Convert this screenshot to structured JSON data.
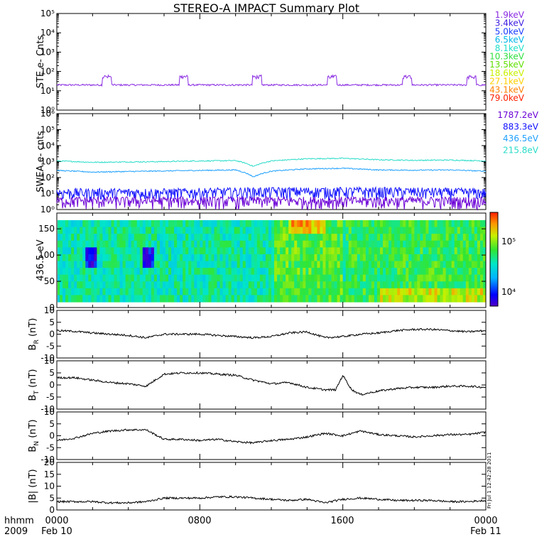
{
  "title": "STEREO-A IMPACT Summary Plot",
  "colors": {
    "axis": "#000000",
    "trace": "#000000",
    "ste": "#8a2be2",
    "swea_dark": [
      "#6b00d6",
      "#1010ff"
    ],
    "swea_light": [
      "#1ea0ff",
      "#28dcc8"
    ]
  },
  "legend_ste": [
    {
      "label": "1.9keV",
      "color": "#8a2be2"
    },
    {
      "label": "3.4keV",
      "color": "#3a1ae0"
    },
    {
      "label": "5.0keV",
      "color": "#1a3cff"
    },
    {
      "label": "6.5keV",
      "color": "#00b7e8"
    },
    {
      "label": "8.1keV",
      "color": "#20e0c8"
    },
    {
      "label": "10.3keV",
      "color": "#30e040"
    },
    {
      "label": "13.5keV",
      "color": "#60e000"
    },
    {
      "label": "18.6keV",
      "color": "#c8f000"
    },
    {
      "label": "27.1keV",
      "color": "#ffd000"
    },
    {
      "label": "43.1keV",
      "color": "#ff8000"
    },
    {
      "label": "79.0keV",
      "color": "#ff2000"
    }
  ],
  "legend_swea": [
    {
      "label": "1787.2eV",
      "color": "#6b00d6"
    },
    {
      "label": "883.3eV",
      "color": "#1010ff"
    },
    {
      "label": "436.5eV",
      "color": "#1ea0ff"
    },
    {
      "label": "215.8eV",
      "color": "#28dcc8"
    }
  ],
  "chart_data": [
    {
      "type": "line",
      "panel": "ste",
      "ylabel": "STE e- Cnts",
      "yscale": "log",
      "ylim": [
        1,
        100000
      ],
      "yticks": [
        "10⁰",
        "10¹",
        "10²",
        "10³",
        "10⁴",
        "10⁵"
      ],
      "series": [
        {
          "name": "1.9keV",
          "x": [
            0,
            2,
            4,
            6,
            8,
            10,
            12,
            14,
            16,
            18,
            20,
            22,
            24
          ],
          "y": [
            20,
            20,
            20,
            20,
            20,
            20,
            20,
            20,
            20,
            20,
            20,
            20,
            20
          ]
        }
      ],
      "bursts_hours": [
        2.8,
        7.1,
        11.2,
        15.4,
        19.6,
        23.2
      ]
    },
    {
      "type": "line",
      "panel": "swea",
      "ylabel": "SWEA e- cnts",
      "yscale": "log",
      "ylim": [
        1,
        1000000
      ],
      "yticks": [
        "10⁰",
        "10¹",
        "10²",
        "10³",
        "10⁴",
        "10⁵",
        "10⁶"
      ],
      "series": [
        {
          "name": "215.8eV",
          "x": [
            0,
            2,
            4,
            6,
            8,
            10,
            11,
            12,
            14,
            16,
            18,
            20,
            22,
            24
          ],
          "y": [
            1100,
            900,
            950,
            1000,
            1100,
            1150,
            500,
            1100,
            1500,
            1600,
            1300,
            1200,
            1250,
            1100
          ]
        },
        {
          "name": "436.5eV",
          "x": [
            0,
            2,
            4,
            6,
            8,
            10,
            11,
            12,
            14,
            16,
            18,
            20,
            22,
            24
          ],
          "y": [
            280,
            220,
            240,
            260,
            280,
            300,
            110,
            250,
            350,
            380,
            300,
            290,
            300,
            250
          ]
        },
        {
          "name": "883.3eV",
          "x": [
            0,
            6,
            12,
            18,
            24
          ],
          "y": [
            10,
            10,
            12,
            12,
            10
          ]
        },
        {
          "name": "1787.2eV",
          "x": [
            0,
            6,
            12,
            18,
            24
          ],
          "y": [
            3,
            3,
            3,
            3,
            3
          ]
        }
      ]
    },
    {
      "type": "heatmap",
      "panel": "pad",
      "ylabel": "436.5 eV",
      "ylim": [
        0,
        180
      ],
      "yticks": [
        0,
        50,
        100,
        150
      ],
      "colorbar": {
        "scale": "log",
        "ticks": [
          "10⁴",
          "10⁵"
        ],
        "range": [
          7000,
          300000
        ]
      }
    },
    {
      "type": "line",
      "panel": "br",
      "ylabel": "B",
      "ylabel_sub": "R",
      "ylabel_unit": "(nT)",
      "ylim": [
        -10,
        10
      ],
      "yticks": [
        -10,
        -5,
        0,
        5,
        10
      ],
      "series": [
        {
          "name": "BR",
          "x": [
            0,
            1,
            2,
            3,
            4,
            5,
            6,
            7,
            8,
            9,
            10,
            11,
            12,
            13,
            14,
            15,
            16,
            17,
            18,
            19,
            20,
            21,
            22,
            23,
            24
          ],
          "y": [
            1.5,
            1.2,
            0.5,
            0.0,
            -0.5,
            -1.5,
            0.0,
            0.0,
            0.0,
            -0.5,
            -1.0,
            -1.5,
            -1.0,
            0.5,
            1.0,
            -1.5,
            -1.0,
            0.0,
            0.5,
            1.5,
            2.0,
            2.0,
            1.5,
            1.0,
            1.5
          ]
        }
      ]
    },
    {
      "type": "line",
      "panel": "bt",
      "ylabel": "B",
      "ylabel_sub": "T",
      "ylabel_unit": "(nT)",
      "ylim": [
        -10,
        10
      ],
      "yticks": [
        -10,
        -5,
        0,
        5,
        10
      ],
      "series": [
        {
          "name": "BT",
          "x": [
            0,
            1,
            2,
            3,
            4,
            5,
            6,
            7,
            8,
            9,
            10,
            11,
            12,
            13,
            14,
            15,
            15.6,
            16,
            16.5,
            17,
            18,
            19,
            20,
            21,
            22,
            23,
            24
          ],
          "y": [
            3.0,
            3.0,
            2.0,
            1.0,
            0.5,
            -0.5,
            4.5,
            5.0,
            5.0,
            4.5,
            4.0,
            2.0,
            0.5,
            1.0,
            -1.0,
            -2.0,
            -2.0,
            4.0,
            -2.0,
            -4.0,
            -2.5,
            -1.5,
            -1.0,
            -1.0,
            -0.5,
            -0.5,
            -1.0
          ]
        }
      ]
    },
    {
      "type": "line",
      "panel": "bn",
      "ylabel": "B",
      "ylabel_sub": "N",
      "ylabel_unit": "(nT)",
      "ylim": [
        -10,
        10
      ],
      "yticks": [
        -10,
        -5,
        0,
        5,
        10
      ],
      "series": [
        {
          "name": "BN",
          "x": [
            0,
            1,
            2,
            3,
            4,
            5,
            6,
            7,
            8,
            9,
            10,
            11,
            12,
            13,
            14,
            15,
            16,
            17,
            18,
            19,
            20,
            21,
            22,
            23,
            24
          ],
          "y": [
            -2.0,
            -1.0,
            1.0,
            2.0,
            2.5,
            2.5,
            -1.5,
            -1.5,
            -2.0,
            -1.5,
            -2.5,
            -3.0,
            -2.0,
            -1.5,
            -0.5,
            1.0,
            0.0,
            2.0,
            0.5,
            0.0,
            -0.5,
            0.0,
            0.5,
            0.5,
            1.5
          ]
        }
      ]
    },
    {
      "type": "line",
      "panel": "bmag",
      "ylabel": "|B| (nT)",
      "ylim": [
        0,
        20
      ],
      "yticks": [
        0,
        5,
        10,
        15,
        20
      ],
      "series": [
        {
          "name": "|B|",
          "x": [
            0,
            1,
            2,
            3,
            4,
            5,
            6,
            7,
            8,
            9,
            10,
            11,
            12,
            13,
            14,
            15,
            16,
            17,
            18,
            19,
            20,
            21,
            22,
            23,
            24
          ],
          "y": [
            3.5,
            3.5,
            3.5,
            3.0,
            3.0,
            3.5,
            5.0,
            5.0,
            5.0,
            5.5,
            5.5,
            5.0,
            4.5,
            4.0,
            4.5,
            3.0,
            4.5,
            5.0,
            4.5,
            4.0,
            4.0,
            4.0,
            3.5,
            3.5,
            4.0
          ]
        }
      ]
    }
  ],
  "xaxis": {
    "ticks": [
      "0000",
      "0800",
      "1600",
      "0000"
    ],
    "dates": [
      "Feb 10",
      "Feb 11"
    ],
    "left_label": "hhmm",
    "year": "2009"
  },
  "timestamp": "Fri Jul  1 12:42:28 2011"
}
